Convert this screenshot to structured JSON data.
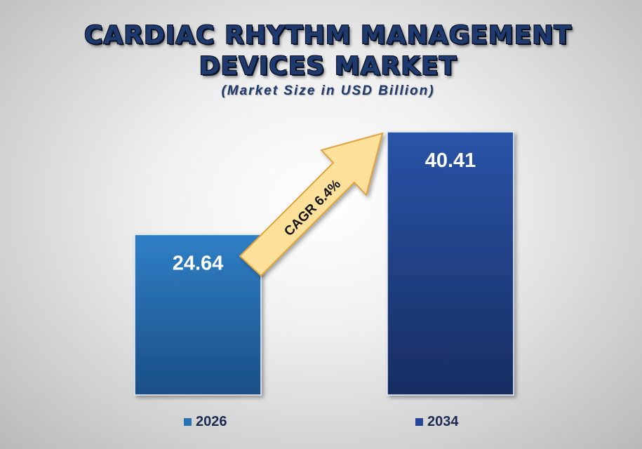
{
  "title_line1": "CARDIAC RHYTHM MANAGEMENT",
  "title_line2": "DEVICES MARKET",
  "subtitle": "(Market Size in USD Billion)",
  "cagr_label": "CAGR 6.4%",
  "colors": {
    "bar_2026": "#2a72b6",
    "bar_2034": "#23489a",
    "arrow_fill": "#fde09a",
    "arrow_stroke": "#e0a23a"
  },
  "chart_data": {
    "type": "bar",
    "categories": [
      "2026",
      "2034"
    ],
    "values": [
      24.64,
      40.41
    ],
    "value_labels": [
      "24.64",
      "40.41"
    ],
    "ylim": [
      0,
      40.41
    ],
    "legend": [
      "2026",
      "2034"
    ],
    "legend_placement": "bottom",
    "grid": false,
    "annotation": "CAGR 6.4%"
  }
}
